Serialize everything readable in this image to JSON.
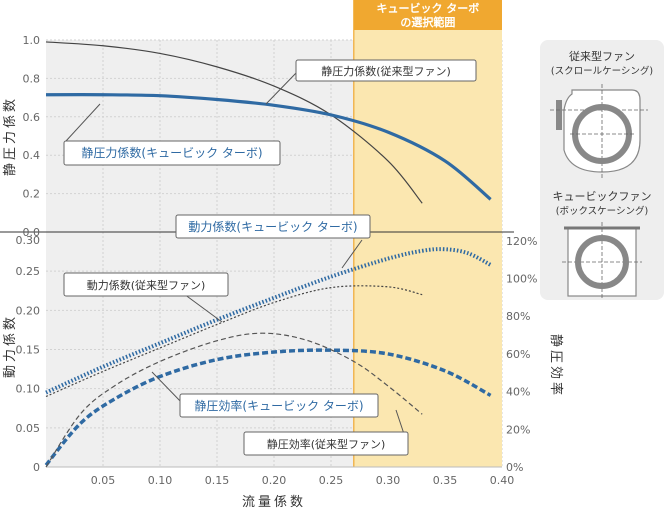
{
  "chart_data": [
    {
      "type": "line",
      "panel": "upper",
      "ylabel": "静圧力係数",
      "xlim": [
        0,
        0.4
      ],
      "ylim": [
        0,
        1.0
      ],
      "yticks": [
        "0.0",
        "0.2",
        "0.4",
        "0.6",
        "0.8",
        "1.0"
      ],
      "series": [
        {
          "name": "静圧力係数(従来型ファン)",
          "color": "#444444",
          "style": "solid-thin",
          "x": [
            0.0,
            0.05,
            0.1,
            0.15,
            0.2,
            0.25,
            0.3,
            0.33
          ],
          "y": [
            0.99,
            0.97,
            0.93,
            0.86,
            0.76,
            0.61,
            0.37,
            0.15
          ]
        },
        {
          "name": "静圧力係数(キュービック ターボ)",
          "color": "#2f6aa3",
          "style": "solid-thick",
          "x": [
            0.0,
            0.05,
            0.1,
            0.15,
            0.2,
            0.25,
            0.3,
            0.35,
            0.39
          ],
          "y": [
            0.715,
            0.715,
            0.71,
            0.69,
            0.66,
            0.61,
            0.52,
            0.37,
            0.17
          ]
        }
      ]
    },
    {
      "type": "line",
      "panel": "lower",
      "ylabel": "動力係数",
      "y2label": "静圧効率",
      "xlabel": "流量係数",
      "xlim": [
        0,
        0.4
      ],
      "ylim": [
        0,
        0.3
      ],
      "y2lim": [
        0,
        130
      ],
      "xticks": [
        "0.05",
        "0.10",
        "0.15",
        "0.20",
        "0.25",
        "0.30",
        "0.35",
        "0.40"
      ],
      "yticks": [
        "0",
        "0.05",
        "0.10",
        "0.15",
        "0.20",
        "0.25",
        "0.30"
      ],
      "y2ticks": [
        "0%",
        "20%",
        "40%",
        "60%",
        "80%",
        "100%",
        "120%"
      ],
      "series": [
        {
          "name": "動力係数(キュービック ターボ)",
          "color": "#2f6aa3",
          "style": "dotted-thick",
          "axis": "left",
          "x": [
            0.0,
            0.05,
            0.1,
            0.15,
            0.2,
            0.25,
            0.3,
            0.33,
            0.35,
            0.37,
            0.39
          ],
          "y": [
            0.095,
            0.128,
            0.158,
            0.188,
            0.216,
            0.243,
            0.266,
            0.276,
            0.278,
            0.273,
            0.258
          ]
        },
        {
          "name": "動力係数(従来型ファン)",
          "color": "#444444",
          "style": "dotted-thin",
          "axis": "left",
          "x": [
            0.0,
            0.05,
            0.1,
            0.15,
            0.2,
            0.25,
            0.3,
            0.33
          ],
          "y": [
            0.09,
            0.122,
            0.152,
            0.182,
            0.21,
            0.229,
            0.23,
            0.22
          ]
        },
        {
          "name": "静圧効率(キュービック ターボ)",
          "color": "#2f6aa3",
          "style": "dashed-thick",
          "axis": "right",
          "x": [
            0.0,
            0.03,
            0.06,
            0.1,
            0.15,
            0.2,
            0.25,
            0.3,
            0.35,
            0.39
          ],
          "y": [
            1,
            23,
            36,
            48,
            57,
            61,
            62,
            60,
            51,
            38
          ]
        },
        {
          "name": "静圧効率(従来型ファン)",
          "color": "#555555",
          "style": "dashed-thin",
          "axis": "right",
          "x": [
            0.0,
            0.03,
            0.06,
            0.1,
            0.15,
            0.19,
            0.23,
            0.27,
            0.3,
            0.33
          ],
          "y": [
            0,
            28,
            43,
            56,
            67,
            71,
            67,
            56,
            43,
            28
          ]
        }
      ]
    }
  ],
  "highlight": {
    "label_line1": "キュービック ターボ",
    "label_line2": "の選択範囲",
    "x_range": [
      0.27,
      0.39
    ],
    "fill": "#fbe7b0",
    "accent": "#f0a830"
  },
  "callouts": [
    {
      "text": "静圧力係数(従来型ファン)",
      "color": "#333333"
    },
    {
      "text": "静圧力係数(キュービック ターボ)",
      "color": "#2f6aa3"
    },
    {
      "text": "動力係数(キュービック ターボ)",
      "color": "#2f6aa3"
    },
    {
      "text": "動力係数(従来型ファン)",
      "color": "#333333"
    },
    {
      "text": "静圧効率(キュービック ターボ)",
      "color": "#2f6aa3"
    },
    {
      "text": "静圧効率(従来型ファン)",
      "color": "#333333"
    }
  ],
  "diagram": {
    "title1_line1": "従来型ファン",
    "title1_line2": "(スクロールケーシング)",
    "title2_line1": "キュービックファン",
    "title2_line2": "(ボックスケーシング)"
  }
}
